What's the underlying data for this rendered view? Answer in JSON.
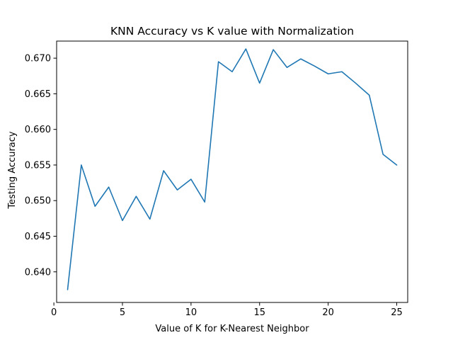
{
  "chart_data": {
    "type": "line",
    "title": "KNN Accuracy vs K value with Normalization",
    "xlabel": "Value of K for K-Nearest Neighbor",
    "ylabel": "Testing Accuracy",
    "xlim": [
      0.2,
      25.8
    ],
    "ylim": [
      0.6357,
      0.6724
    ],
    "xticks": [
      0,
      5,
      10,
      15,
      20,
      25
    ],
    "xtick_labels": [
      "0",
      "5",
      "10",
      "15",
      "20",
      "25"
    ],
    "yticks": [
      0.64,
      0.645,
      0.65,
      0.655,
      0.66,
      0.665,
      0.67
    ],
    "ytick_labels": [
      "0.640",
      "0.645",
      "0.650",
      "0.655",
      "0.660",
      "0.665",
      "0.670"
    ],
    "grid": false,
    "series": [
      {
        "color": "#1f77b4",
        "x": [
          1,
          2,
          3,
          4,
          5,
          6,
          7,
          8,
          9,
          10,
          11,
          12,
          13,
          14,
          15,
          16,
          17,
          18,
          19,
          20,
          21,
          22,
          23,
          24,
          25
        ],
        "y": [
          0.6375,
          0.655,
          0.6492,
          0.6519,
          0.6472,
          0.6506,
          0.6474,
          0.6542,
          0.6515,
          0.653,
          0.6498,
          0.6695,
          0.6681,
          0.6713,
          0.6665,
          0.6712,
          0.6687,
          0.6699,
          0.6689,
          0.6678,
          0.6681,
          0.6665,
          0.6648,
          0.6565,
          0.655
        ]
      }
    ]
  }
}
